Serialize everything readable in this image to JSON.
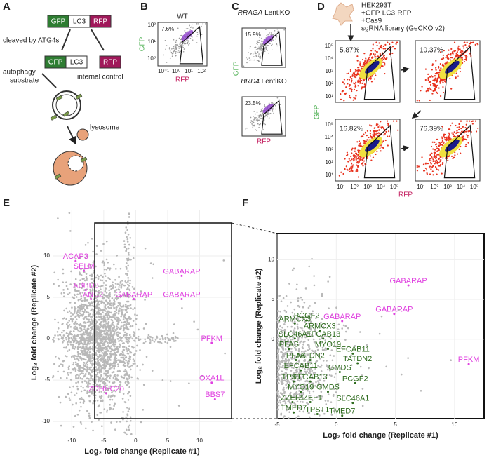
{
  "panel_labels": [
    "A",
    "B",
    "C",
    "D",
    "E",
    "F"
  ],
  "panel_a": {
    "gfp": "GFP",
    "lc3": "LC3",
    "rfp": "RFP",
    "cleaved": "cleaved by ATG4s",
    "substrate": [
      "autophagy",
      "substrate"
    ],
    "control": "internal control",
    "lysosome": "lysosome"
  },
  "panel_b": {
    "title": "WT",
    "gate": "7.6%",
    "ylabel": "GFP",
    "xlabel": "RFP",
    "xticks": [
      "10⁻¹",
      "10⁰",
      "10¹",
      "10²"
    ],
    "yticks": [
      "10⁰",
      "10¹",
      "10²"
    ]
  },
  "panel_c": {
    "plots": [
      {
        "gene": "RRAGA",
        "suffix": " LentiKO",
        "gate": "15.9%"
      },
      {
        "gene": "BRD4",
        "suffix": " LentiKO",
        "gate": "23.5%"
      }
    ],
    "ylabel": "GFP",
    "xlabel": "RFP"
  },
  "panel_d": {
    "cells": [
      "HEK293T",
      "+GFP-LC3-RFP",
      "+Cas9"
    ],
    "library": "sgRNA library (GeCKO v2)",
    "gates": [
      "5.87%",
      "10.37%",
      "16.82%",
      "76.39%"
    ],
    "ylabel": "GFP",
    "xlabel": "RFP",
    "ticks": [
      "10¹",
      "10²",
      "10³",
      "10⁴",
      "10⁵"
    ]
  },
  "chart_data": [
    {
      "type": "scatter",
      "xlabel": "Log₂ fold change (Replicate #1)",
      "ylabel": "Log₂ fold change (Replicate #2)",
      "xlim": [
        -13,
        15
      ],
      "ylim": [
        -11.6,
        15.5
      ],
      "xticks": [
        -10,
        -5,
        0,
        5,
        10
      ],
      "yticks": [
        -10,
        -5,
        0,
        5,
        10
      ],
      "series": [
        {
          "color": "#e040e0",
          "labels": [
            "ACAP3",
            "SELM",
            "ABHD3",
            "TANC2",
            "GABARAP",
            "GABARAP",
            "GABARAP",
            "PFKM",
            "OXA1L",
            "BBS7",
            "ZDHHC20"
          ],
          "x": [
            -9.4,
            -8.1,
            -7.8,
            -7,
            -0.3,
            7.2,
            7.2,
            11.9,
            11.9,
            12.4,
            -4.6
          ],
          "y": [
            9.9,
            8.7,
            6.4,
            5.3,
            5.3,
            8.1,
            5.3,
            0,
            -4.8,
            -6.8,
            -6.1
          ]
        }
      ]
    },
    {
      "type": "scatter",
      "xlabel": "Log₂ fold change (Replicate #1)",
      "ylabel": "Log₂ fold change (Replicate #2)",
      "xlim": [
        -5,
        12.5
      ],
      "ylim": [
        -10,
        13.3
      ],
      "xticks": [
        -5,
        0,
        5,
        10
      ],
      "yticks": [
        0,
        5,
        10
      ],
      "series": [
        {
          "color": "#e040e0",
          "labels": [
            "GABARAP",
            "GABARAP",
            "GABARAP",
            "PFKM"
          ],
          "x": [
            6.1,
            4.9,
            0.5,
            11.2
          ],
          "y": [
            7.3,
            3.7,
            2.8,
            -2.6
          ]
        },
        {
          "color": "#2e6b1e",
          "labels": [
            "PCGF2",
            "ARMCX3",
            "ARMCX3",
            "SLC46A1",
            "EFCAB13",
            "MYO19",
            "PFAS",
            "EFCAB11",
            "PFAS",
            "TATDN2",
            "TATDN2",
            "EFCAB11",
            "GMDS",
            "TPST1",
            "EFCAB13",
            "PCGF2",
            "MYO19",
            "GMDS",
            "ZZEF1",
            "ZZEF1",
            "SLC46A1",
            "TMED7",
            "TPST1",
            "TMED7"
          ],
          "x": [
            -2.5,
            -3.5,
            -1.4,
            -3.5,
            -1.1,
            -0.7,
            -4,
            1.4,
            -3.4,
            -2.2,
            1.8,
            -3,
            0.3,
            -3.6,
            -2.2,
            1.6,
            -3,
            -0.7,
            -3.7,
            -2.2,
            1.4,
            -3.6,
            -1.6,
            0.5
          ],
          "y": [
            2.9,
            2.5,
            1.6,
            0.6,
            0.6,
            -0.7,
            -0.7,
            -1.3,
            -2.1,
            -2.1,
            -2.5,
            -3.4,
            -3.6,
            -4.8,
            -4.8,
            -5,
            -6.1,
            -6.1,
            -7.4,
            -7.4,
            -7.5,
            -8.7,
            -8.9,
            -9.1
          ]
        }
      ]
    }
  ]
}
